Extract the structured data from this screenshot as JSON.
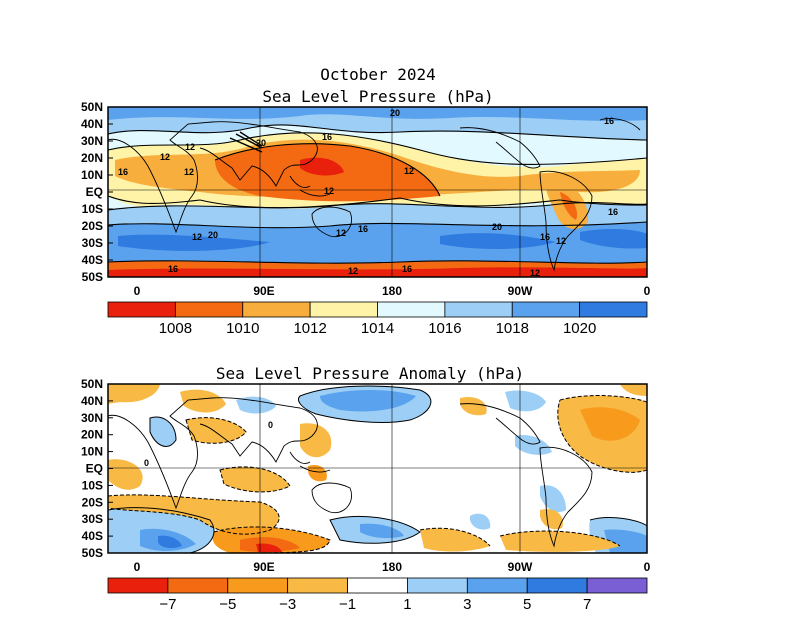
{
  "panels": [
    {
      "title_line1": "October 2024",
      "title_line2": "Sea Level Pressure (hPa)",
      "lat_labels": [
        "50N",
        "40N",
        "30N",
        "20N",
        "10N",
        "EQ",
        "10S",
        "20S",
        "30S",
        "40S",
        "50S"
      ],
      "lon_labels": [
        "0",
        "90E",
        "180",
        "90W",
        "0"
      ],
      "colorbar_labels": [
        "1008",
        "1010",
        "1012",
        "1014",
        "1016",
        "1018",
        "1020"
      ],
      "colorbar_colors": [
        "#e8200c",
        "#f36a12",
        "#f8ae3c",
        "#fff3a8",
        "#e2faff",
        "#9dcff6",
        "#5aa2ee",
        "#2f7be0"
      ],
      "contour_labels": [
        "12",
        "16",
        "12",
        "12",
        "20",
        "12",
        "16",
        "12",
        "16",
        "16",
        "16",
        "12",
        "20",
        "12",
        "16",
        "20",
        "16",
        "20",
        "12",
        "12",
        "16",
        "12"
      ]
    },
    {
      "title": "Sea Level Pressure Anomaly (hPa)",
      "lat_labels": [
        "50N",
        "40N",
        "30N",
        "20N",
        "10N",
        "EQ",
        "10S",
        "20S",
        "30S",
        "40S",
        "50S"
      ],
      "lon_labels": [
        "0",
        "90E",
        "180",
        "90W",
        "0"
      ],
      "colorbar_labels": [
        "−7",
        "−5",
        "−3",
        "−1",
        "1",
        "3",
        "5",
        "7"
      ],
      "colorbar_colors": [
        "#e8200c",
        "#f36a12",
        "#f89a1c",
        "#f8ba44",
        "#ffffff",
        "#9dcff6",
        "#5aa2ee",
        "#2f7be0",
        "#7a5fd4"
      ],
      "contour_labels": [
        "0",
        "0"
      ]
    }
  ]
}
